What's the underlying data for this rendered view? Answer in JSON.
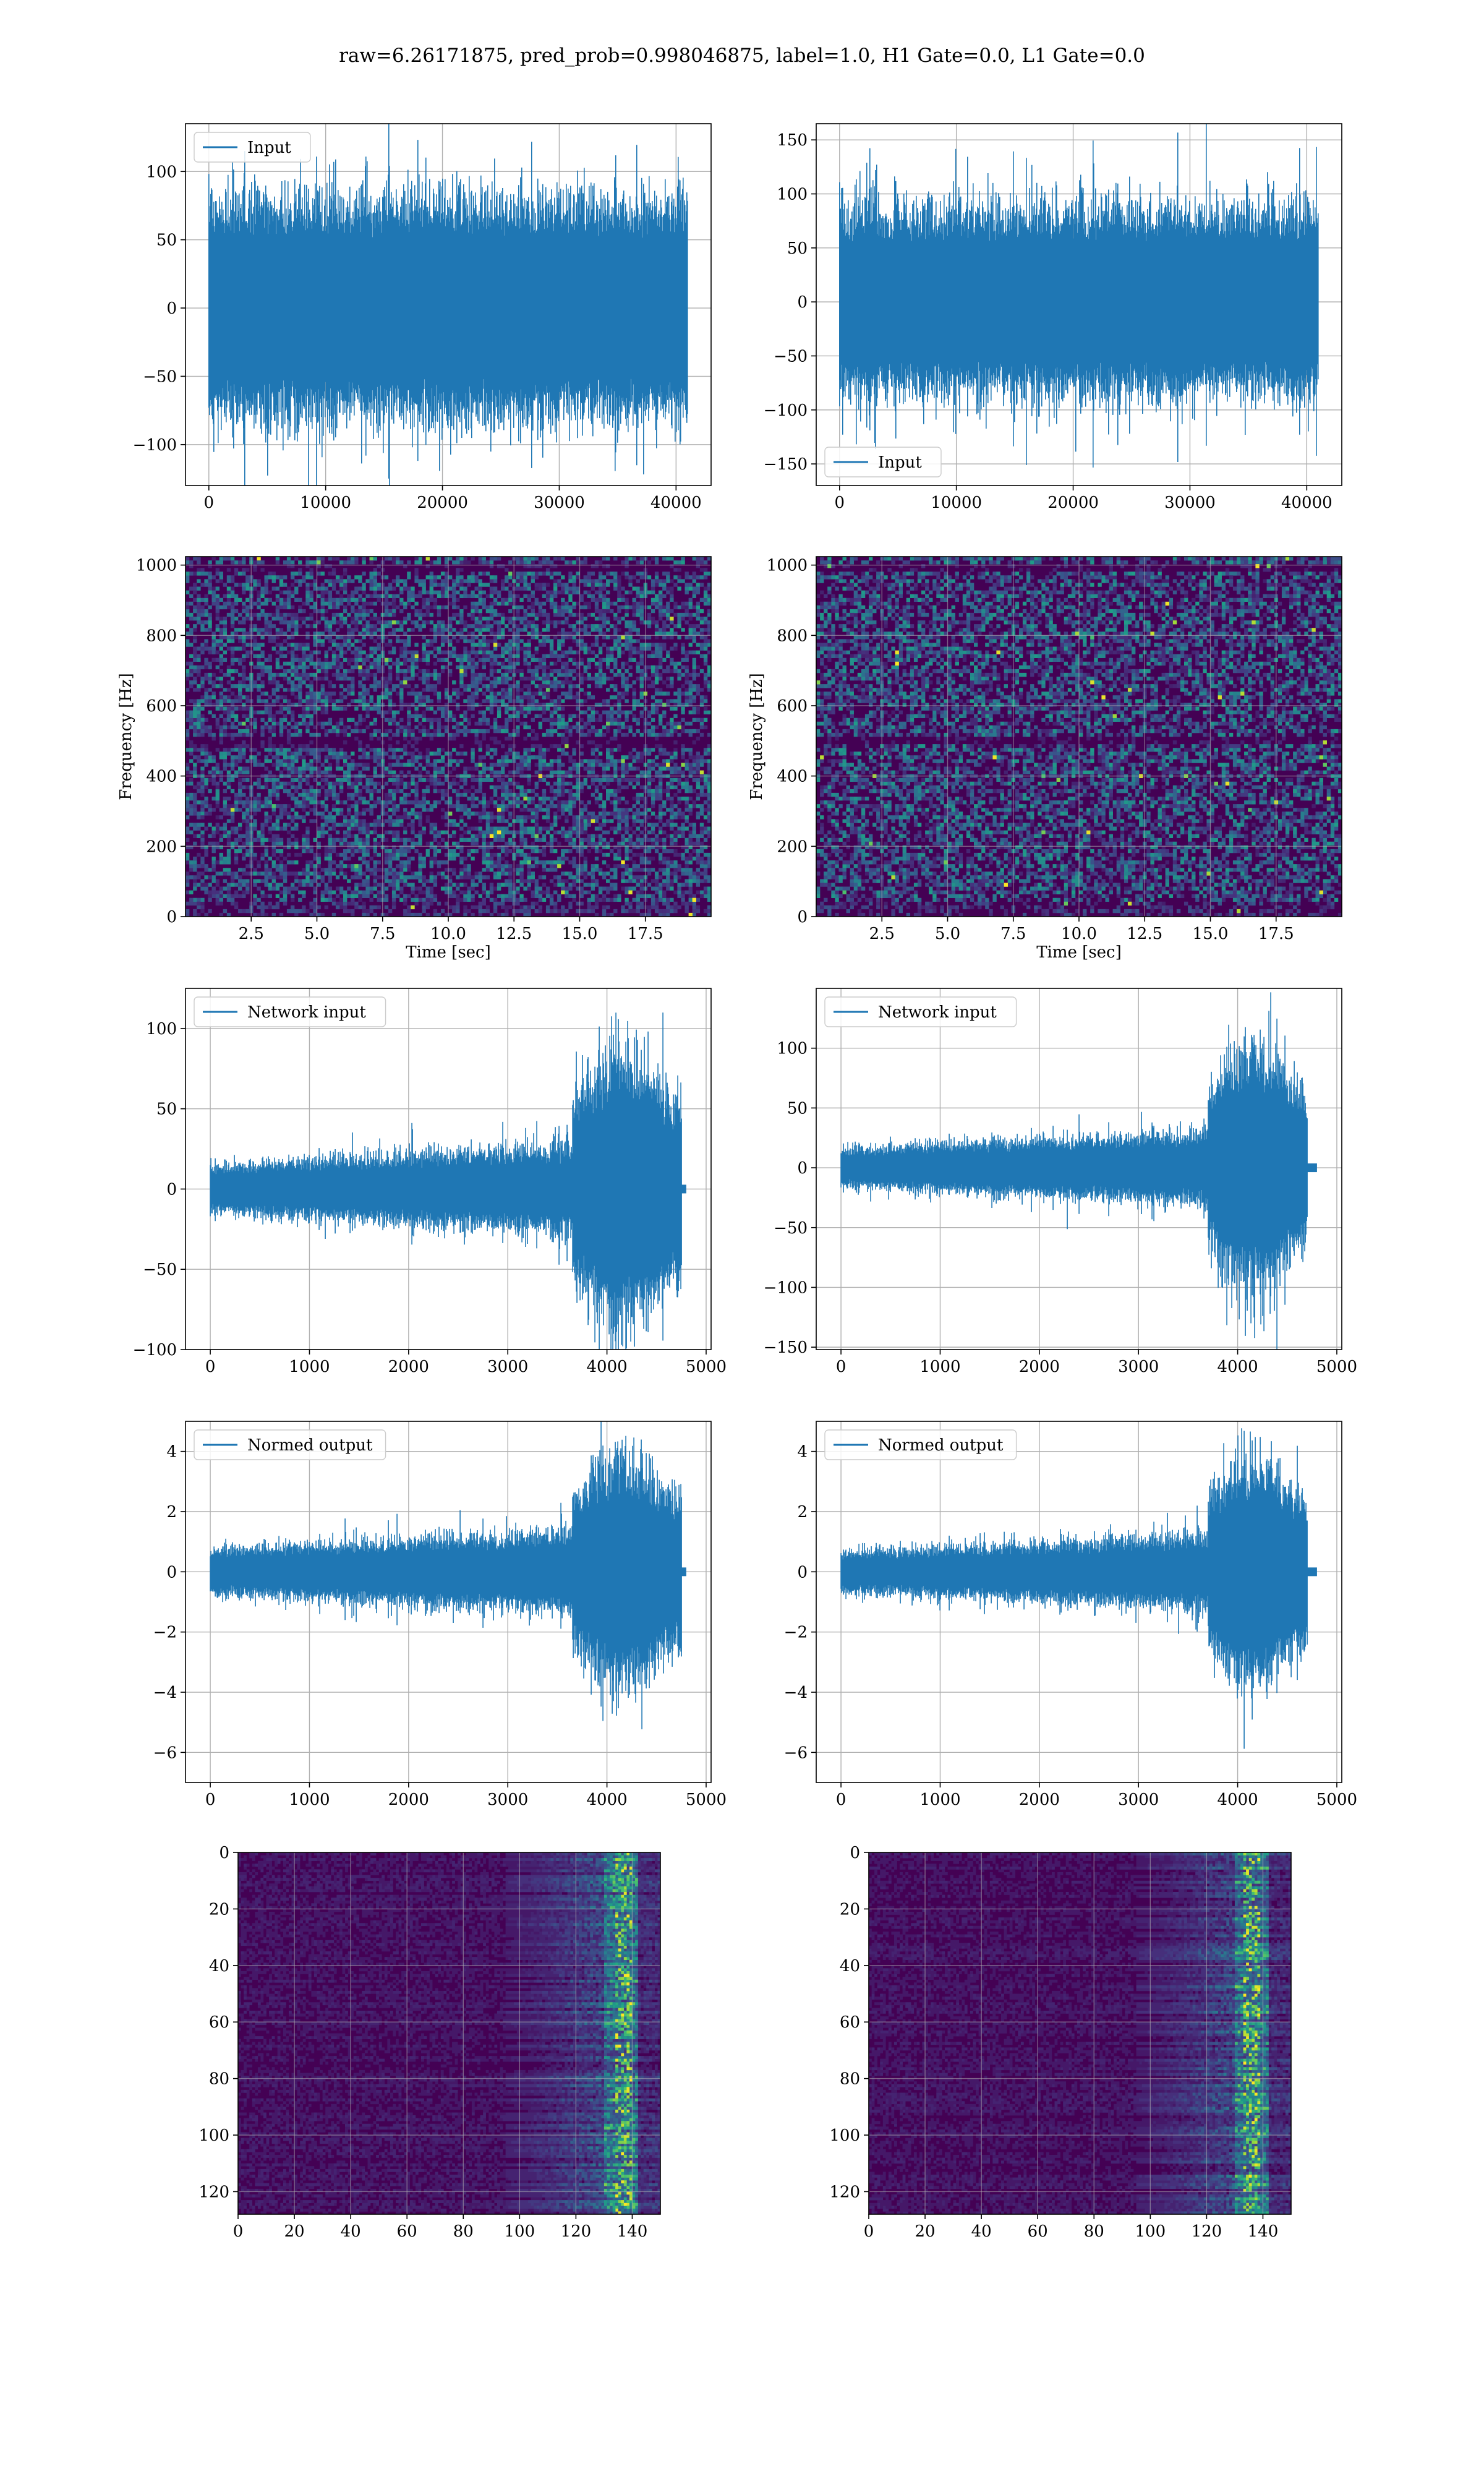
{
  "figure": {
    "title": "raw=6.26171875, pred_prob=0.998046875, label=1.0, H1 Gate=0.0, L1 Gate=0.0"
  },
  "colors": {
    "line": "#1f77b4",
    "grid": "#b0b0b0",
    "axes": "#000000",
    "viridis": [
      "#440154",
      "#46327e",
      "#365c8d",
      "#277f8e",
      "#1fa187",
      "#4ac16d",
      "#a0da39",
      "#fde725"
    ]
  },
  "chart_data": [
    {
      "id": "raw-h1",
      "type": "line",
      "noise": "uniform",
      "legend": "Input",
      "legend_position": "upper-left",
      "xlim": [
        -2000,
        43000
      ],
      "ylim": [
        -130,
        135
      ],
      "xticks": [
        0,
        10000,
        20000,
        30000,
        40000
      ],
      "yticks": [
        -100,
        -50,
        0,
        50,
        100
      ],
      "x_range": [
        0,
        40960
      ],
      "envelope": 80,
      "peak": 128,
      "grid": true,
      "xlabel": "",
      "ylabel": ""
    },
    {
      "id": "raw-l1",
      "type": "line",
      "noise": "uniform",
      "legend": "Input",
      "legend_position": "lower-left",
      "xlim": [
        -2000,
        43000
      ],
      "ylim": [
        -170,
        165
      ],
      "xticks": [
        0,
        10000,
        20000,
        30000,
        40000
      ],
      "yticks": [
        -150,
        -100,
        -50,
        0,
        50,
        100,
        150
      ],
      "x_range": [
        0,
        40960
      ],
      "envelope": 85,
      "peak": 150,
      "grid": true,
      "xlabel": "",
      "ylabel": ""
    },
    {
      "id": "spec-h1",
      "type": "heatmap",
      "variant": "spectrogram",
      "xlim": [
        0,
        20
      ],
      "ylim": [
        0,
        1024
      ],
      "xticks": [
        2.5,
        5.0,
        7.5,
        10.0,
        12.5,
        15.0,
        17.5
      ],
      "yticks": [
        0,
        200,
        400,
        600,
        800,
        1000
      ],
      "xtick_labels": [
        "2.5",
        "5.0",
        "7.5",
        "10.0",
        "12.5",
        "15.0",
        "17.5"
      ],
      "dark_bands_hz": [
        495,
        990
      ],
      "xlabel": "Time [sec]",
      "ylabel": "Frequency [Hz]",
      "grid": true
    },
    {
      "id": "spec-l1",
      "type": "heatmap",
      "variant": "spectrogram",
      "xlim": [
        0,
        20
      ],
      "ylim": [
        0,
        1024
      ],
      "xticks": [
        2.5,
        5.0,
        7.5,
        10.0,
        12.5,
        15.0,
        17.5
      ],
      "yticks": [
        0,
        200,
        400,
        600,
        800,
        1000
      ],
      "xtick_labels": [
        "2.5",
        "5.0",
        "7.5",
        "10.0",
        "12.5",
        "15.0",
        "17.5"
      ],
      "dark_bands_hz": [
        500,
        990
      ],
      "xlabel": "Time [sec]",
      "ylabel": "Frequency [Hz]",
      "grid": true
    },
    {
      "id": "net-h1",
      "type": "line",
      "noise": "growing",
      "legend": "Network input",
      "legend_position": "upper-left",
      "xlim": [
        -250,
        5050
      ],
      "ylim": [
        -100,
        125
      ],
      "xticks": [
        0,
        1000,
        2000,
        3000,
        4000,
        5000
      ],
      "yticks": [
        -100,
        -50,
        0,
        50,
        100
      ],
      "x_range": [
        0,
        4750
      ],
      "tail_end": 4800,
      "base_amp": 20,
      "burst_start": 3650,
      "burst_amp": 85,
      "peak": 115,
      "grid": true,
      "xlabel": "",
      "ylabel": ""
    },
    {
      "id": "net-l1",
      "type": "line",
      "noise": "growing",
      "legend": "Network input",
      "legend_position": "upper-left",
      "xlim": [
        -250,
        5050
      ],
      "ylim": [
        -152,
        150
      ],
      "xticks": [
        0,
        1000,
        2000,
        3000,
        4000,
        5000
      ],
      "yticks": [
        -150,
        -100,
        -50,
        0,
        50,
        100
      ],
      "x_range": [
        0,
        4700
      ],
      "tail_end": 4800,
      "base_amp": 22,
      "burst_start": 3700,
      "burst_amp": 100,
      "peak": 138,
      "grid": true,
      "xlabel": "",
      "ylabel": ""
    },
    {
      "id": "norm-h1",
      "type": "line",
      "noise": "growing",
      "legend": "Normed output",
      "legend_position": "upper-left",
      "xlim": [
        -250,
        5050
      ],
      "ylim": [
        -7.0,
        5.0
      ],
      "xticks": [
        0,
        1000,
        2000,
        3000,
        4000,
        5000
      ],
      "yticks": [
        -6,
        -4,
        -2,
        0,
        2,
        4
      ],
      "x_range": [
        0,
        4750
      ],
      "tail_end": 4800,
      "base_amp": 1.0,
      "burst_start": 3650,
      "burst_amp": 3.8,
      "peak": 4.7,
      "grid": true,
      "xlabel": "",
      "ylabel": ""
    },
    {
      "id": "norm-l1",
      "type": "line",
      "noise": "growing",
      "legend": "Normed output",
      "legend_position": "upper-left",
      "xlim": [
        -250,
        5050
      ],
      "ylim": [
        -7.0,
        5.0
      ],
      "xticks": [
        0,
        1000,
        2000,
        3000,
        4000,
        5000
      ],
      "yticks": [
        -6,
        -4,
        -2,
        0,
        2,
        4
      ],
      "x_range": [
        0,
        4700
      ],
      "tail_end": 4800,
      "base_amp": 0.9,
      "burst_start": 3700,
      "burst_amp": 3.8,
      "peak": 4.8,
      "grid": true,
      "xlabel": "",
      "ylabel": ""
    },
    {
      "id": "feat-h1",
      "type": "heatmap",
      "variant": "features",
      "xlim": [
        0,
        150
      ],
      "ylim": [
        128,
        0
      ],
      "xticks": [
        0,
        20,
        40,
        60,
        80,
        100,
        120,
        140
      ],
      "yticks": [
        0,
        20,
        40,
        60,
        80,
        100,
        120
      ],
      "bright_columns": [
        135,
        138
      ],
      "grid": true,
      "xlabel": "",
      "ylabel": ""
    },
    {
      "id": "feat-l1",
      "type": "heatmap",
      "variant": "features",
      "xlim": [
        0,
        150
      ],
      "ylim": [
        128,
        0
      ],
      "xticks": [
        0,
        20,
        40,
        60,
        80,
        100,
        120,
        140
      ],
      "yticks": [
        0,
        20,
        40,
        60,
        80,
        100,
        120
      ],
      "bright_columns": [
        134,
        137
      ],
      "grid": true,
      "xlabel": "",
      "ylabel": ""
    }
  ]
}
